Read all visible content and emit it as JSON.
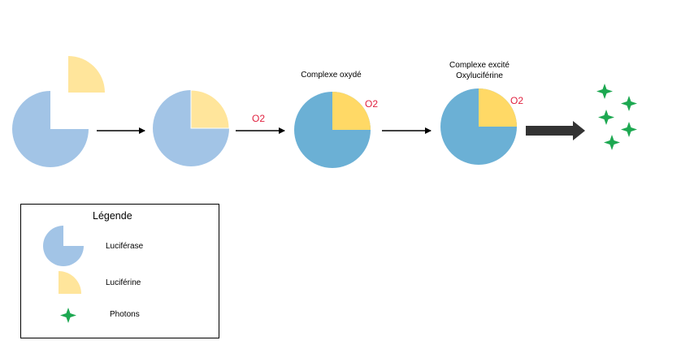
{
  "stages": [
    {
      "label": "",
      "oxygen": ""
    },
    {
      "label": "",
      "oxygen": ""
    },
    {
      "label": "Complexe oxydé",
      "oxygen": "O2"
    },
    {
      "label_line1": "Complexe excité",
      "label_line2": "Oxyluciférine",
      "oxygen": "O2"
    }
  ],
  "arrows": [
    {
      "label": ""
    },
    {
      "label": "O2"
    },
    {
      "label": ""
    },
    {
      "label": ""
    }
  ],
  "legend": {
    "title": "Légende",
    "items": [
      {
        "label": "Luciférase",
        "icon": "luciferase-icon"
      },
      {
        "label": "Luciférine",
        "icon": "luciferine-icon"
      },
      {
        "label": "Photons",
        "icon": "photon-icon"
      }
    ]
  },
  "colors": {
    "luciferase": "#A2C4E6",
    "luciferase_oxidized": "#6BB0D5",
    "luciferine": "#FFE59B",
    "luciferine_oxidized": "#FFD966",
    "oxygen_text": "#E0213F",
    "photon": "#1DA851",
    "arrow": "#000000",
    "big_arrow": "#333333"
  }
}
